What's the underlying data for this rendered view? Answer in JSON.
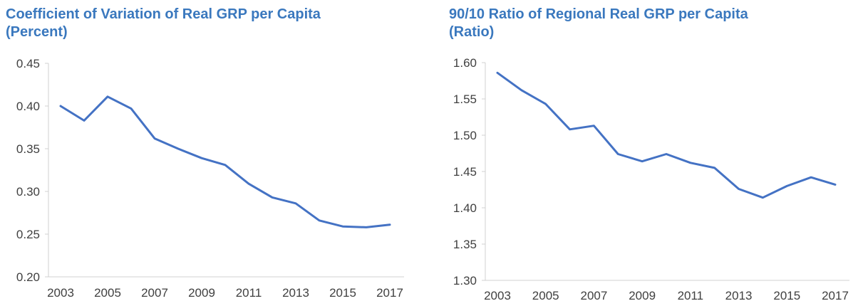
{
  "chart_data": [
    {
      "type": "line",
      "title": "Coefficient of Variation of Real GRP per Capita",
      "subtitle": "(Percent)",
      "xlabel": "",
      "ylabel": "",
      "ylim": [
        0.2,
        0.45
      ],
      "xlim": [
        2003,
        2017
      ],
      "yticks": [
        "0.20",
        "0.25",
        "0.30",
        "0.35",
        "0.40",
        "0.45"
      ],
      "xticks": [
        "2003",
        "2005",
        "2007",
        "2009",
        "2011",
        "2013",
        "2015",
        "2017"
      ],
      "grid": false,
      "legend": "none",
      "line_color": "#4472C4",
      "title_color": "#3A78BE",
      "series": [
        {
          "x": [
            2003,
            2004,
            2005,
            2006,
            2007,
            2008,
            2009,
            2010,
            2011,
            2012,
            2013,
            2014,
            2015,
            2016,
            2017
          ],
          "values": [
            0.4,
            0.383,
            0.411,
            0.397,
            0.362,
            0.35,
            0.339,
            0.331,
            0.309,
            0.293,
            0.286,
            0.266,
            0.259,
            0.258,
            0.261
          ]
        }
      ]
    },
    {
      "type": "line",
      "title": "90/10 Ratio of Regional Real GRP per Capita",
      "subtitle": "(Ratio)",
      "xlabel": "",
      "ylabel": "",
      "ylim": [
        1.3,
        1.6
      ],
      "xlim": [
        2003,
        2017
      ],
      "yticks": [
        "1.30",
        "1.35",
        "1.40",
        "1.45",
        "1.50",
        "1.55",
        "1.60"
      ],
      "xticks": [
        "2003",
        "2005",
        "2007",
        "2009",
        "2011",
        "2013",
        "2015",
        "2017"
      ],
      "grid": false,
      "legend": "none",
      "line_color": "#4472C4",
      "title_color": "#3A78BE",
      "series": [
        {
          "x": [
            2003,
            2004,
            2005,
            2006,
            2007,
            2008,
            2009,
            2010,
            2011,
            2012,
            2013,
            2014,
            2015,
            2016,
            2017
          ],
          "values": [
            1.586,
            1.562,
            1.543,
            1.508,
            1.513,
            1.474,
            1.464,
            1.474,
            1.462,
            1.455,
            1.426,
            1.414,
            1.43,
            1.442,
            1.432
          ]
        }
      ]
    }
  ]
}
